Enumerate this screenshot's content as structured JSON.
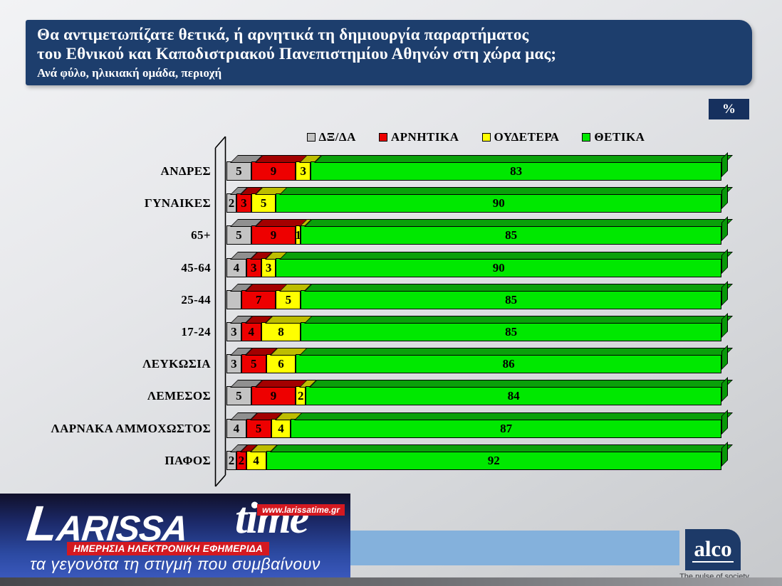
{
  "title": {
    "line1": "Θα αντιμετωπίζατε θετικά, ή αρνητικά τη δημιουργία παραρτήματος",
    "line2": "του Εθνικού και Καποδιστριακού Πανεπιστημίου Αθηνών στη χώρα μας;",
    "subtitle": "Ανά φύλο, ηλικιακή ομάδα, περιοχή"
  },
  "unit_badge": "%",
  "colors": {
    "title_bg": "#1d3e6d",
    "badge_bg": "#16305e",
    "blue_band": "#84b1dc",
    "alco_bg": "#1d3a68",
    "brand_red": "#d41920"
  },
  "chart_data": {
    "type": "bar",
    "orientation": "horizontal",
    "stacked": true,
    "unit": "%",
    "xlim": [
      0,
      100
    ],
    "legend_position": "top",
    "grid": false,
    "series": [
      {
        "name": "ΔΞ/ΔΑ",
        "color": "#c3c3c3",
        "top_color": "#909090",
        "side_color": "#8a8a8a"
      },
      {
        "name": "ΑΡΝΗΤΙΚΑ",
        "color": "#ee0000",
        "top_color": "#a30000",
        "side_color": "#990000"
      },
      {
        "name": "ΟΥΔΕΤΕΡΑ",
        "color": "#ffff00",
        "top_color": "#bdbd00",
        "side_color": "#b0b000"
      },
      {
        "name": "ΘΕΤΙΚΑ",
        "color": "#00e800",
        "top_color": "#0aa00a",
        "side_color": "#089808"
      }
    ],
    "categories": [
      "ΑΝΔΡΕΣ",
      "ΓΥΝΑΙΚΕΣ",
      "65+",
      "45-64",
      "25-44",
      "17-24",
      "ΛΕΥΚΩΣΙΑ",
      "ΛΕΜΕΣΟΣ",
      "ΛΑΡΝΑΚΑ ΑΜΜΟΧΩΣΤΟΣ",
      "ΠΑΦΟΣ"
    ],
    "rows": [
      {
        "category": "ΑΝΔΡΕΣ",
        "values": [
          5,
          9,
          3,
          83
        ],
        "labels": [
          "5",
          "9",
          "3",
          "83"
        ]
      },
      {
        "category": "ΓΥΝΑΙΚΕΣ",
        "values": [
          2,
          3,
          5,
          90
        ],
        "labels": [
          "2",
          "3",
          "5",
          "90"
        ]
      },
      {
        "category": "65+",
        "values": [
          5,
          9,
          1,
          85
        ],
        "labels": [
          "5",
          "9",
          "1",
          "85"
        ]
      },
      {
        "category": "45-64",
        "values": [
          4,
          3,
          3,
          90
        ],
        "labels": [
          "4",
          "3",
          "3",
          "90"
        ]
      },
      {
        "category": "25-44",
        "values": [
          3,
          7,
          5,
          85
        ],
        "labels": [
          "",
          "7",
          "5",
          "85"
        ]
      },
      {
        "category": "17-24",
        "values": [
          3,
          4,
          8,
          85
        ],
        "labels": [
          "3",
          "4",
          "8",
          "85"
        ]
      },
      {
        "category": "ΛΕΥΚΩΣΙΑ",
        "values": [
          3,
          5,
          6,
          86
        ],
        "labels": [
          "3",
          "5",
          "6",
          "86"
        ]
      },
      {
        "category": "ΛΕΜΕΣΟΣ",
        "values": [
          5,
          9,
          2,
          84
        ],
        "labels": [
          "5",
          "9",
          "2",
          "84"
        ]
      },
      {
        "category": "ΛΑΡΝΑΚΑ ΑΜΜΟΧΩΣΤΟΣ",
        "values": [
          4,
          5,
          4,
          87
        ],
        "labels": [
          "4",
          "5",
          "4",
          "87"
        ]
      },
      {
        "category": "ΠΑΦΟΣ",
        "values": [
          2,
          2,
          4,
          92
        ],
        "labels": [
          "2",
          "2",
          "4",
          "92"
        ]
      }
    ]
  },
  "branding": {
    "larissa": {
      "name_part1": "LARISSA",
      "name_part2": "time",
      "url": "www.larissatime.gr",
      "strip": "ΗΜΕΡΗΣΙΑ ΗΛΕΚΤΡΟΝΙΚΗ ΕΦΗΜΕΡΙΔΑ",
      "tagline": "τα γεγονότα τη στιγμή που συμβαίνουν"
    },
    "alco": {
      "name": "alco",
      "tagline": "The pulse of society"
    }
  }
}
